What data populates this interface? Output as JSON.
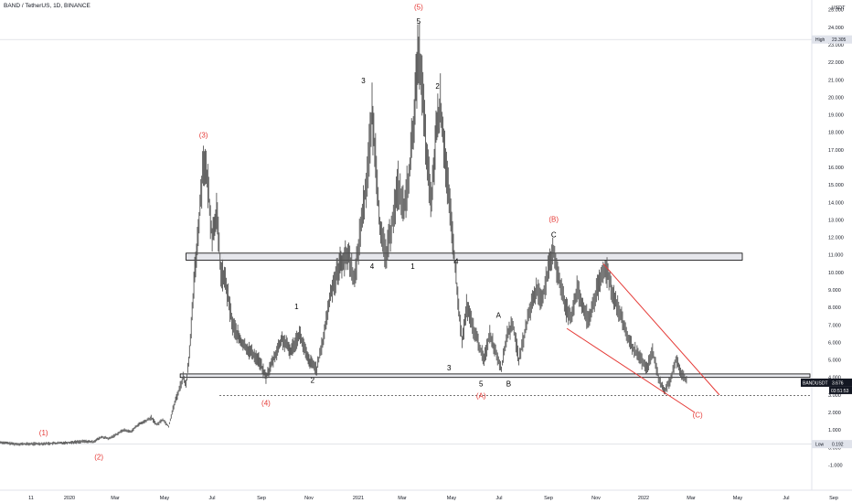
{
  "header": {
    "symbol_title": "BAND / TetherUS, 1D, BINANCE"
  },
  "chart_data": {
    "type": "candlestick",
    "y_unit": "USDT",
    "y_axis_ticks": [
      -1.0,
      0.0,
      1.0,
      2.0,
      3.0,
      4.0,
      5.0,
      6.0,
      7.0,
      8.0,
      9.0,
      10.0,
      11.0,
      12.0,
      13.0,
      14.0,
      15.0,
      16.0,
      17.0,
      18.0,
      19.0,
      20.0,
      21.0,
      22.0,
      23.0,
      24.0,
      25.0
    ],
    "ylim": [
      -1.5,
      25.3
    ],
    "x_axis_labels": [
      "11",
      "2020",
      "Mar",
      "May",
      "Jul",
      "Sep",
      "Nov",
      "2021",
      "Mar",
      "May",
      "Jul",
      "Sep",
      "Nov",
      "2022",
      "Mar",
      "May",
      "Jul",
      "Sep"
    ],
    "price_series": [
      {
        "t": 0,
        "v": 0.3
      },
      {
        "t": 10,
        "v": 0.2
      },
      {
        "t": 20,
        "v": 0.2
      },
      {
        "t": 30,
        "v": 0.22
      },
      {
        "t": 40,
        "v": 0.25
      },
      {
        "t": 50,
        "v": 0.3
      },
      {
        "t": 58,
        "v": 0.35
      },
      {
        "t": 64,
        "v": 0.32
      },
      {
        "t": 70,
        "v": 0.6
      },
      {
        "t": 75,
        "v": 0.5
      },
      {
        "t": 80,
        "v": 0.75
      },
      {
        "t": 85,
        "v": 1.0
      },
      {
        "t": 90,
        "v": 0.9
      },
      {
        "t": 95,
        "v": 1.3
      },
      {
        "t": 100,
        "v": 1.5
      },
      {
        "t": 104,
        "v": 1.7
      },
      {
        "t": 108,
        "v": 1.3
      },
      {
        "t": 112,
        "v": 1.6
      },
      {
        "t": 116,
        "v": 1.2
      },
      {
        "t": 119,
        "v": 2.2
      },
      {
        "t": 122,
        "v": 3.0
      },
      {
        "t": 126,
        "v": 4.0
      },
      {
        "t": 128,
        "v": 3.6
      },
      {
        "t": 131,
        "v": 6.0
      },
      {
        "t": 134,
        "v": 10.0
      },
      {
        "t": 137,
        "v": 13.0
      },
      {
        "t": 140,
        "v": 16.5
      },
      {
        "t": 143,
        "v": 15.0
      },
      {
        "t": 146,
        "v": 12.0
      },
      {
        "t": 149,
        "v": 13.5
      },
      {
        "t": 152,
        "v": 10.0
      },
      {
        "t": 155,
        "v": 9.5
      },
      {
        "t": 160,
        "v": 7.0
      },
      {
        "t": 166,
        "v": 6.0
      },
      {
        "t": 172,
        "v": 5.5
      },
      {
        "t": 178,
        "v": 5.0
      },
      {
        "t": 183,
        "v": 4.0
      },
      {
        "t": 188,
        "v": 5.0
      },
      {
        "t": 194,
        "v": 6.2
      },
      {
        "t": 200,
        "v": 5.5
      },
      {
        "t": 206,
        "v": 6.5
      },
      {
        "t": 212,
        "v": 5.0
      },
      {
        "t": 218,
        "v": 4.5
      },
      {
        "t": 222,
        "v": 6.0
      },
      {
        "t": 228,
        "v": 9.0
      },
      {
        "t": 234,
        "v": 10.5
      },
      {
        "t": 240,
        "v": 11.0
      },
      {
        "t": 244,
        "v": 9.5
      },
      {
        "t": 248,
        "v": 12.5
      },
      {
        "t": 252,
        "v": 15.0
      },
      {
        "t": 256,
        "v": 19.0
      },
      {
        "t": 259,
        "v": 16.0
      },
      {
        "t": 262,
        "v": 12.0
      },
      {
        "t": 266,
        "v": 11.0
      },
      {
        "t": 270,
        "v": 13.0
      },
      {
        "t": 274,
        "v": 15.0
      },
      {
        "t": 278,
        "v": 13.5
      },
      {
        "t": 282,
        "v": 16.0
      },
      {
        "t": 285,
        "v": 19.0
      },
      {
        "t": 288,
        "v": 22.8
      },
      {
        "t": 291,
        "v": 20.0
      },
      {
        "t": 294,
        "v": 16.0
      },
      {
        "t": 297,
        "v": 14.0
      },
      {
        "t": 300,
        "v": 18.0
      },
      {
        "t": 303,
        "v": 19.5
      },
      {
        "t": 306,
        "v": 17.0
      },
      {
        "t": 309,
        "v": 14.0
      },
      {
        "t": 312,
        "v": 11.5
      },
      {
        "t": 315,
        "v": 8.5
      },
      {
        "t": 318,
        "v": 6.0
      },
      {
        "t": 321,
        "v": 8.0
      },
      {
        "t": 325,
        "v": 7.0
      },
      {
        "t": 329,
        "v": 6.0
      },
      {
        "t": 333,
        "v": 5.0
      },
      {
        "t": 337,
        "v": 6.5
      },
      {
        "t": 341,
        "v": 5.5
      },
      {
        "t": 345,
        "v": 4.5
      },
      {
        "t": 349,
        "v": 6.5
      },
      {
        "t": 353,
        "v": 7.0
      },
      {
        "t": 357,
        "v": 5.0
      },
      {
        "t": 361,
        "v": 6.5
      },
      {
        "t": 365,
        "v": 8.0
      },
      {
        "t": 369,
        "v": 9.0
      },
      {
        "t": 373,
        "v": 8.5
      },
      {
        "t": 377,
        "v": 10.0
      },
      {
        "t": 381,
        "v": 11.2
      },
      {
        "t": 385,
        "v": 9.5
      },
      {
        "t": 389,
        "v": 8.0
      },
      {
        "t": 393,
        "v": 7.5
      },
      {
        "t": 397,
        "v": 9.0
      },
      {
        "t": 401,
        "v": 8.0
      },
      {
        "t": 405,
        "v": 7.2
      },
      {
        "t": 409,
        "v": 8.5
      },
      {
        "t": 413,
        "v": 9.5
      },
      {
        "t": 417,
        "v": 10.3
      },
      {
        "t": 421,
        "v": 9.0
      },
      {
        "t": 425,
        "v": 8.0
      },
      {
        "t": 429,
        "v": 7.0
      },
      {
        "t": 433,
        "v": 6.0
      },
      {
        "t": 437,
        "v": 5.5
      },
      {
        "t": 441,
        "v": 5.0
      },
      {
        "t": 445,
        "v": 4.5
      },
      {
        "t": 449,
        "v": 5.5
      },
      {
        "t": 453,
        "v": 4.0
      },
      {
        "t": 457,
        "v": 3.2
      },
      {
        "t": 461,
        "v": 3.8
      },
      {
        "t": 465,
        "v": 5.0
      },
      {
        "t": 469,
        "v": 4.2
      },
      {
        "t": 473,
        "v": 3.676
      }
    ],
    "horizontal_zones": [
      {
        "y_low": 10.7,
        "y_high": 11.1,
        "t_start": 128,
        "t_end": 562
      },
      {
        "y_low": 4.0,
        "y_high": 4.2,
        "t_start": 124,
        "t_end": 562
      }
    ],
    "dotted_line": {
      "y": 2.96
    },
    "trendlines": [
      {
        "t1": 415,
        "v1": 10.5,
        "t2": 495,
        "v2": 3.0,
        "color": "#e53935"
      },
      {
        "t1": 390,
        "v1": 6.8,
        "t2": 478,
        "v2": 2.0,
        "color": "#e53935"
      }
    ],
    "wave_labels": [
      {
        "text": "(1)",
        "t": 30,
        "v": 0.7,
        "color": "red"
      },
      {
        "text": "(2)",
        "t": 68,
        "v": -0.7,
        "color": "red"
      },
      {
        "text": "(3)",
        "t": 140,
        "v": 17.7,
        "color": "red"
      },
      {
        "text": "(4)",
        "t": 183,
        "v": 2.4,
        "color": "red"
      },
      {
        "text": "(5)",
        "t": 288,
        "v": 25.0,
        "color": "red"
      },
      {
        "text": "5",
        "t": 288,
        "v": 24.2,
        "color": "black"
      },
      {
        "text": "3",
        "t": 250,
        "v": 20.8,
        "color": "black"
      },
      {
        "text": "2",
        "t": 301,
        "v": 20.5,
        "color": "black"
      },
      {
        "text": "1",
        "t": 204,
        "v": 7.9,
        "color": "black"
      },
      {
        "text": "2",
        "t": 215,
        "v": 3.7,
        "color": "black"
      },
      {
        "text": "4",
        "t": 256,
        "v": 10.2,
        "color": "black"
      },
      {
        "text": "1",
        "t": 284,
        "v": 10.2,
        "color": "black"
      },
      {
        "text": "4",
        "t": 314,
        "v": 10.5,
        "color": "black"
      },
      {
        "text": "3",
        "t": 309,
        "v": 4.4,
        "color": "black"
      },
      {
        "text": "5",
        "t": 331,
        "v": 3.5,
        "color": "black"
      },
      {
        "text": "(A)",
        "t": 331,
        "v": 2.8,
        "color": "red"
      },
      {
        "text": "A",
        "t": 343,
        "v": 7.4,
        "color": "black"
      },
      {
        "text": "B",
        "t": 350,
        "v": 3.5,
        "color": "black"
      },
      {
        "text": "(B)",
        "t": 381,
        "v": 12.9,
        "color": "red"
      },
      {
        "text": "C",
        "t": 381,
        "v": 12.0,
        "color": "black"
      },
      {
        "text": "(C)",
        "t": 480,
        "v": 1.7,
        "color": "red"
      }
    ],
    "price_tags": [
      {
        "label": "High",
        "value": "23.305",
        "y": 23.305
      },
      {
        "label": "BANDUSDT",
        "value": "3.676",
        "y": 3.676,
        "sub": "03:51:53"
      },
      {
        "label": "Low",
        "value": "0.192",
        "y": 0.192
      }
    ]
  },
  "colors": {
    "candle": "#555555",
    "zone_fill": "#d1d4dc",
    "trendline": "#e53935",
    "wave_red": "#e53935",
    "tag_dark": "#131722",
    "tag_light": "#e0e3eb"
  }
}
